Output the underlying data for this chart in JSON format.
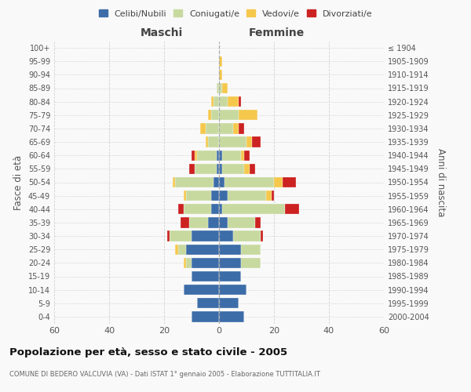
{
  "age_groups": [
    "0-4",
    "5-9",
    "10-14",
    "15-19",
    "20-24",
    "25-29",
    "30-34",
    "35-39",
    "40-44",
    "45-49",
    "50-54",
    "55-59",
    "60-64",
    "65-69",
    "70-74",
    "75-79",
    "80-84",
    "85-89",
    "90-94",
    "95-99",
    "100+"
  ],
  "birth_years": [
    "2000-2004",
    "1995-1999",
    "1990-1994",
    "1985-1989",
    "1980-1984",
    "1975-1979",
    "1970-1974",
    "1965-1969",
    "1960-1964",
    "1955-1959",
    "1950-1954",
    "1945-1949",
    "1940-1944",
    "1935-1939",
    "1930-1934",
    "1925-1929",
    "1920-1924",
    "1915-1919",
    "1910-1914",
    "1905-1909",
    "≤ 1904"
  ],
  "male": {
    "celibi": [
      10,
      8,
      13,
      10,
      10,
      12,
      10,
      4,
      3,
      3,
      2,
      1,
      1,
      0,
      0,
      0,
      0,
      0,
      0,
      0,
      0
    ],
    "coniugati": [
      0,
      0,
      0,
      0,
      2,
      3,
      8,
      7,
      10,
      9,
      14,
      8,
      7,
      4,
      5,
      3,
      2,
      1,
      0,
      0,
      0
    ],
    "vedovi": [
      0,
      0,
      0,
      0,
      1,
      1,
      0,
      0,
      0,
      1,
      1,
      0,
      1,
      1,
      2,
      1,
      1,
      0,
      0,
      0,
      0
    ],
    "divorziati": [
      0,
      0,
      0,
      0,
      0,
      0,
      1,
      3,
      2,
      0,
      0,
      2,
      1,
      0,
      0,
      0,
      0,
      0,
      0,
      0,
      0
    ]
  },
  "female": {
    "nubili": [
      9,
      7,
      10,
      8,
      8,
      8,
      5,
      3,
      1,
      3,
      2,
      1,
      1,
      0,
      0,
      0,
      0,
      0,
      0,
      0,
      0
    ],
    "coniugate": [
      0,
      0,
      0,
      0,
      7,
      7,
      10,
      10,
      23,
      14,
      18,
      8,
      7,
      10,
      5,
      7,
      3,
      1,
      0,
      0,
      0
    ],
    "vedove": [
      0,
      0,
      0,
      0,
      0,
      0,
      0,
      0,
      0,
      2,
      3,
      2,
      1,
      2,
      2,
      7,
      4,
      2,
      1,
      1,
      0
    ],
    "divorziate": [
      0,
      0,
      0,
      0,
      0,
      0,
      1,
      2,
      5,
      1,
      5,
      2,
      2,
      3,
      2,
      0,
      1,
      0,
      0,
      0,
      0
    ]
  },
  "colors": {
    "celibi": "#3d6da8",
    "coniugati": "#c8d9a0",
    "vedovi": "#f5c84c",
    "divorziati": "#cc2222"
  },
  "xlim": 60,
  "title": "Popolazione per età, sesso e stato civile - 2005",
  "subtitle": "COMUNE DI BEDERO VALCUVIA (VA) - Dati ISTAT 1° gennaio 2005 - Elaborazione TUTTITALIA.IT",
  "ylabel_left": "Fasce di età",
  "ylabel_right": "Anni di nascita",
  "xlabel_male": "Maschi",
  "xlabel_female": "Femmine",
  "bg_color": "#f9f9f9",
  "grid_color": "#cccccc"
}
